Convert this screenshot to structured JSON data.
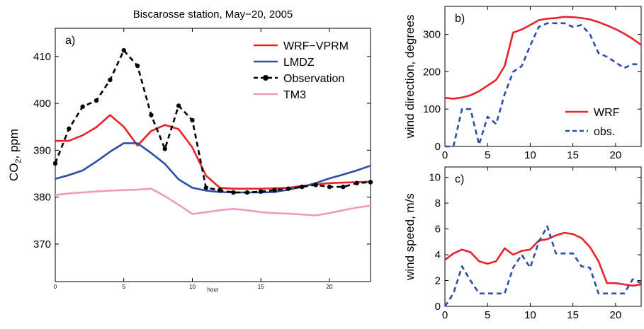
{
  "chart_data": [
    {
      "id": "a",
      "type": "line",
      "title": "Biscarosse station, May−20, 2005",
      "panel_label": "a)",
      "xlabel": "hour",
      "ylabel_main": "CO",
      "ylabel_sub": "2",
      "ylabel_tail": ", ppm",
      "xlim": [
        0,
        23
      ],
      "ylim": [
        362,
        416
      ],
      "xticks": [
        0,
        5,
        10,
        15,
        20
      ],
      "yticks": [
        370,
        380,
        390,
        400,
        410
      ],
      "legend_position": "top-right",
      "series": [
        {
          "name": "WRF−VPRM",
          "color": "#e8242a",
          "style": "solid",
          "x": [
            0,
            1,
            2,
            3,
            4,
            5,
            6,
            7,
            8,
            9,
            10,
            11,
            12,
            13,
            14,
            15,
            16,
            17,
            18,
            19,
            20,
            21,
            22,
            23
          ],
          "y": [
            392,
            392,
            393.2,
            394.9,
            397.5,
            395,
            391,
            394.1,
            395.4,
            394.5,
            390.6,
            384.6,
            382,
            381.8,
            381.8,
            381.8,
            381.9,
            382,
            382.4,
            382.7,
            383,
            383.1,
            383.2,
            383.3
          ]
        },
        {
          "name": "LMDZ",
          "color": "#2b4ea6",
          "style": "solid",
          "x": [
            0,
            1,
            2,
            3,
            4,
            5,
            6,
            7,
            8,
            9,
            10,
            11,
            12,
            13,
            14,
            15,
            16,
            17,
            18,
            19,
            20,
            21,
            22,
            23
          ],
          "y": [
            383.9,
            384.7,
            385.7,
            387.6,
            389.7,
            391.5,
            391.5,
            389.4,
            387.1,
            383.8,
            382,
            381.4,
            381.1,
            381,
            381,
            381,
            381.1,
            381.6,
            382.2,
            383,
            384,
            384.8,
            385.7,
            386.7
          ]
        },
        {
          "name": "Observation",
          "color": "#000000",
          "style": "dashed-marker",
          "x": [
            0,
            1,
            2,
            3,
            4,
            5,
            6,
            7,
            8,
            9,
            10,
            11,
            12,
            13,
            14,
            15,
            16,
            17,
            18,
            19,
            20,
            21,
            22,
            23
          ],
          "y": [
            387.2,
            394.6,
            399.3,
            400.6,
            405,
            411.3,
            408,
            397.5,
            390.3,
            399.5,
            396.4,
            382,
            381.5,
            381,
            381,
            381.2,
            381.5,
            381.8,
            382.2,
            382.6,
            382.2,
            382.2,
            383,
            383.2
          ]
        },
        {
          "name": "TM3",
          "color": "#f19ac1",
          "style": "solid",
          "x": [
            0,
            1,
            2,
            3,
            4,
            5,
            6,
            7,
            8,
            9,
            10,
            11,
            12,
            13,
            14,
            15,
            16,
            17,
            18,
            19,
            20,
            21,
            22,
            23
          ],
          "y": [
            380.5,
            380.8,
            381,
            381.2,
            381.4,
            381.5,
            381.6,
            381.8,
            380.2,
            378.4,
            376.4,
            376.8,
            377.2,
            377.5,
            377.2,
            376.8,
            376.6,
            376.5,
            376.3,
            376.1,
            376.6,
            377.2,
            377.8,
            378.2
          ]
        }
      ]
    },
    {
      "id": "b",
      "type": "line",
      "panel_label": "b)",
      "ylabel": "wind direction, degrees",
      "xlim": [
        0,
        23
      ],
      "ylim": [
        0,
        375
      ],
      "xticks": [
        0,
        5,
        10,
        15,
        20
      ],
      "yticks": [
        0,
        100,
        200,
        300
      ],
      "legend_position": "bottom-right",
      "series": [
        {
          "name": "WRF",
          "color": "#e8242a",
          "style": "solid",
          "x": [
            0,
            1,
            2,
            3,
            4,
            5,
            6,
            7,
            8,
            9,
            10,
            11,
            12,
            13,
            14,
            15,
            16,
            17,
            18,
            19,
            20,
            21,
            22,
            23
          ],
          "y": [
            130,
            128,
            131,
            137,
            148,
            163,
            178,
            215,
            305,
            313,
            325,
            338,
            342,
            344,
            347,
            346,
            344,
            340,
            333,
            324,
            314,
            302,
            288,
            272
          ]
        },
        {
          "name": "obs.",
          "color": "#2b4ea6",
          "style": "dashed",
          "x": [
            0,
            1,
            2,
            3,
            4,
            5,
            6,
            7,
            8,
            9,
            10,
            11,
            12,
            13,
            14,
            15,
            16,
            17,
            18,
            19,
            20,
            21,
            22,
            23
          ],
          "y": [
            0,
            0,
            100,
            100,
            5,
            80,
            60,
            140,
            200,
            215,
            270,
            320,
            330,
            330,
            330,
            320,
            325,
            300,
            250,
            240,
            225,
            210,
            220,
            220
          ]
        }
      ]
    },
    {
      "id": "c",
      "type": "line",
      "panel_label": "c)",
      "ylabel": "wind speed, m/s",
      "xlim": [
        0,
        23
      ],
      "ylim": [
        0,
        10.8
      ],
      "xticks": [
        0,
        5,
        10,
        15,
        20
      ],
      "yticks": [
        0,
        2,
        4,
        6,
        8,
        10
      ],
      "series": [
        {
          "name": "WRF",
          "color": "#e8242a",
          "style": "solid",
          "x": [
            0,
            1,
            2,
            3,
            4,
            5,
            6,
            7,
            8,
            9,
            10,
            11,
            12,
            13,
            14,
            15,
            16,
            17,
            18,
            19,
            20,
            21,
            22,
            23
          ],
          "y": [
            3.6,
            4.1,
            4.4,
            4.2,
            3.5,
            3.3,
            3.5,
            4.5,
            4.0,
            4.3,
            4.4,
            5.1,
            5.2,
            5.5,
            5.7,
            5.6,
            5.3,
            4.6,
            3.5,
            1.8,
            1.8,
            1.7,
            1.6,
            1.7
          ]
        },
        {
          "name": "obs.",
          "color": "#2b4ea6",
          "style": "dashed",
          "x": [
            0,
            1,
            2,
            3,
            4,
            5,
            6,
            7,
            8,
            9,
            10,
            11,
            12,
            13,
            14,
            15,
            16,
            17,
            18,
            19,
            20,
            21,
            22,
            23
          ],
          "y": [
            0,
            1,
            3.1,
            2,
            1,
            1,
            1,
            1,
            3,
            4,
            3,
            5,
            6.2,
            4.1,
            4.1,
            4.1,
            3.1,
            3,
            1,
            1,
            1,
            1,
            2.1,
            1.8
          ]
        }
      ]
    }
  ]
}
